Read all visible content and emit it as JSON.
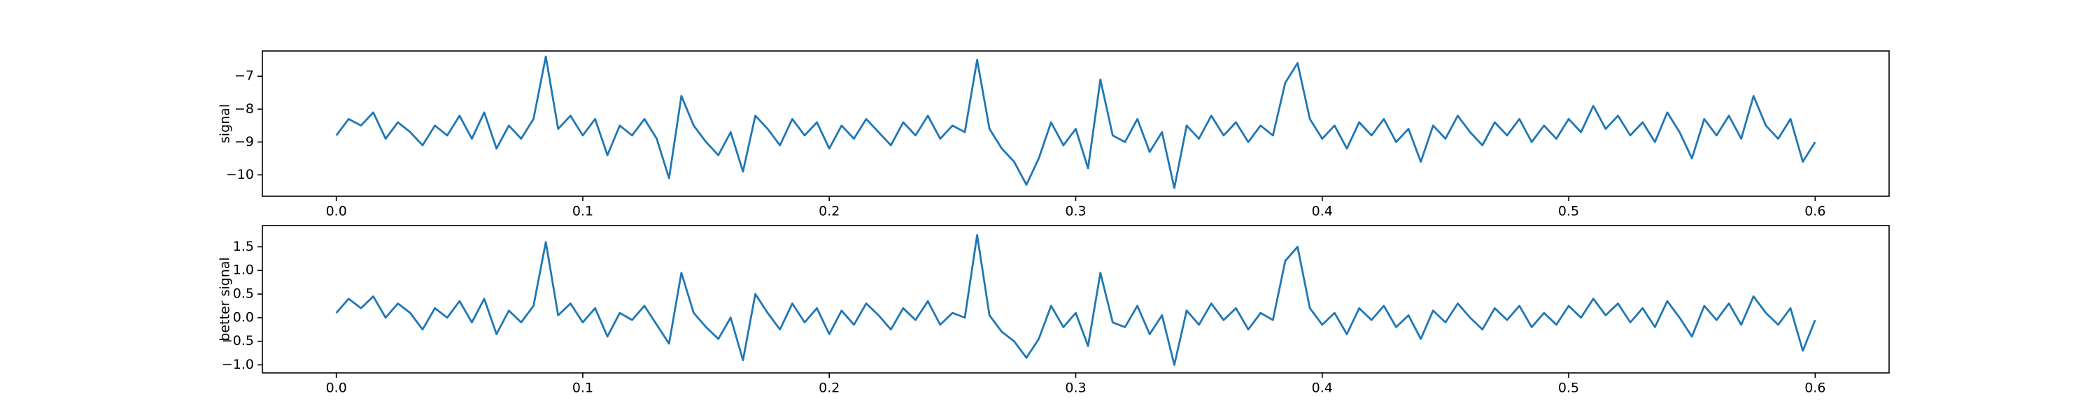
{
  "chart_data": [
    {
      "type": "line",
      "ylabel": "signal",
      "color": "#1f77b4",
      "xlim": [
        -0.03,
        0.63
      ],
      "ylim": [
        -10.65,
        -6.23
      ],
      "xticks": [
        {
          "value": 0,
          "label": "0.0"
        },
        0.1,
        0.2,
        0.3,
        0.4,
        0.5,
        0.6
      ],
      "yticks": [
        {
          "value": -10,
          "label": "−10"
        },
        {
          "value": -9,
          "label": "−9"
        },
        {
          "value": -8,
          "label": "−8"
        },
        {
          "value": -7,
          "label": "−7"
        }
      ],
      "x": [
        0,
        0.005,
        0.01,
        0.015,
        0.02,
        0.025,
        0.03,
        0.035,
        0.04,
        0.045,
        0.05,
        0.055,
        0.06,
        0.065,
        0.07,
        0.075,
        0.08,
        0.085,
        0.09,
        0.095,
        0.1,
        0.105,
        0.11,
        0.115,
        0.12,
        0.125,
        0.13,
        0.135,
        0.14,
        0.145,
        0.15,
        0.155,
        0.16,
        0.165,
        0.17,
        0.175,
        0.18,
        0.185,
        0.19,
        0.195,
        0.2,
        0.205,
        0.21,
        0.215,
        0.22,
        0.225,
        0.23,
        0.235,
        0.24,
        0.245,
        0.25,
        0.255,
        0.26,
        0.265,
        0.27,
        0.275,
        0.28,
        0.285,
        0.29,
        0.295,
        0.3,
        0.305,
        0.31,
        0.315,
        0.32,
        0.325,
        0.33,
        0.335,
        0.34,
        0.345,
        0.35,
        0.355,
        0.36,
        0.365,
        0.37,
        0.375,
        0.38,
        0.385,
        0.39,
        0.395,
        0.4,
        0.405,
        0.41,
        0.415,
        0.42,
        0.425,
        0.43,
        0.435,
        0.44,
        0.445,
        0.45,
        0.455,
        0.46,
        0.465,
        0.47,
        0.475,
        0.48,
        0.485,
        0.49,
        0.495,
        0.5,
        0.505,
        0.51,
        0.515,
        0.52,
        0.525,
        0.53,
        0.535,
        0.54,
        0.545,
        0.55,
        0.555,
        0.56,
        0.565,
        0.57,
        0.575,
        0.58,
        0.585,
        0.59,
        0.595,
        0.6
      ],
      "values": [
        -8.8,
        -8.3,
        -8.5,
        -8.1,
        -8.9,
        -8.4,
        -8.7,
        -9.1,
        -8.5,
        -8.8,
        -8.2,
        -8.9,
        -8.1,
        -9.2,
        -8.5,
        -8.9,
        -8.3,
        -6.4,
        -8.6,
        -8.2,
        -8.8,
        -8.3,
        -9.4,
        -8.5,
        -8.8,
        -8.3,
        -8.9,
        -10.1,
        -7.6,
        -8.5,
        -9.0,
        -9.4,
        -8.7,
        -9.9,
        -8.2,
        -8.6,
        -9.1,
        -8.3,
        -8.8,
        -8.4,
        -9.2,
        -8.5,
        -8.9,
        -8.3,
        -8.7,
        -9.1,
        -8.4,
        -8.8,
        -8.2,
        -8.9,
        -8.5,
        -8.7,
        -6.5,
        -8.6,
        -9.2,
        -9.6,
        -10.3,
        -9.5,
        -8.4,
        -9.1,
        -8.6,
        -9.8,
        -7.1,
        -8.8,
        -9.0,
        -8.3,
        -9.3,
        -8.7,
        -10.4,
        -8.5,
        -8.9,
        -8.2,
        -8.8,
        -8.4,
        -9.0,
        -8.5,
        -8.8,
        -7.2,
        -6.6,
        -8.3,
        -8.9,
        -8.5,
        -9.2,
        -8.4,
        -8.8,
        -8.3,
        -9.0,
        -8.6,
        -9.6,
        -8.5,
        -8.9,
        -8.2,
        -8.7,
        -9.1,
        -8.4,
        -8.8,
        -8.3,
        -9.0,
        -8.5,
        -8.9,
        -8.3,
        -8.7,
        -7.9,
        -8.6,
        -8.2,
        -8.8,
        -8.4,
        -9.0,
        -8.1,
        -8.7,
        -9.5,
        -8.3,
        -8.8,
        -8.2,
        -8.9,
        -7.6,
        -8.5,
        -8.9,
        -8.3,
        -9.6,
        -9.0
      ]
    },
    {
      "type": "line",
      "ylabel": "better signal",
      "color": "#1f77b4",
      "xlim": [
        -0.03,
        0.63
      ],
      "ylim": [
        -1.17,
        1.95
      ],
      "xticks": [
        {
          "value": 0,
          "label": "0.0"
        },
        0.1,
        0.2,
        0.3,
        0.4,
        0.5,
        0.6
      ],
      "yticks": [
        {
          "value": -1,
          "label": "−1.0"
        },
        {
          "value": -0.5,
          "label": "−0.5"
        },
        {
          "value": 0,
          "label": "0.0"
        },
        0.5,
        {
          "value": 1,
          "label": "1.0"
        },
        1.5
      ],
      "x": [
        0,
        0.005,
        0.01,
        0.015,
        0.02,
        0.025,
        0.03,
        0.035,
        0.04,
        0.045,
        0.05,
        0.055,
        0.06,
        0.065,
        0.07,
        0.075,
        0.08,
        0.085,
        0.09,
        0.095,
        0.1,
        0.105,
        0.11,
        0.115,
        0.12,
        0.125,
        0.13,
        0.135,
        0.14,
        0.145,
        0.15,
        0.155,
        0.16,
        0.165,
        0.17,
        0.175,
        0.18,
        0.185,
        0.19,
        0.195,
        0.2,
        0.205,
        0.21,
        0.215,
        0.22,
        0.225,
        0.23,
        0.235,
        0.24,
        0.245,
        0.25,
        0.255,
        0.26,
        0.265,
        0.27,
        0.275,
        0.28,
        0.285,
        0.29,
        0.295,
        0.3,
        0.305,
        0.31,
        0.315,
        0.32,
        0.325,
        0.33,
        0.335,
        0.34,
        0.345,
        0.35,
        0.355,
        0.36,
        0.365,
        0.37,
        0.375,
        0.38,
        0.385,
        0.39,
        0.395,
        0.4,
        0.405,
        0.41,
        0.415,
        0.42,
        0.425,
        0.43,
        0.435,
        0.44,
        0.445,
        0.45,
        0.455,
        0.46,
        0.465,
        0.47,
        0.475,
        0.48,
        0.485,
        0.49,
        0.495,
        0.5,
        0.505,
        0.51,
        0.515,
        0.52,
        0.525,
        0.53,
        0.535,
        0.54,
        0.545,
        0.55,
        0.555,
        0.56,
        0.565,
        0.57,
        0.575,
        0.58,
        0.585,
        0.59,
        0.595,
        0.6
      ],
      "values": [
        0.1,
        0.4,
        0.2,
        0.45,
        0.0,
        0.3,
        0.1,
        -0.25,
        0.2,
        0.0,
        0.35,
        -0.1,
        0.4,
        -0.35,
        0.15,
        -0.1,
        0.25,
        1.6,
        0.05,
        0.3,
        -0.1,
        0.2,
        -0.4,
        0.1,
        -0.05,
        0.25,
        -0.15,
        -0.55,
        0.95,
        0.1,
        -0.2,
        -0.45,
        0.0,
        -0.9,
        0.5,
        0.1,
        -0.25,
        0.3,
        -0.1,
        0.2,
        -0.35,
        0.15,
        -0.15,
        0.3,
        0.05,
        -0.25,
        0.2,
        -0.05,
        0.35,
        -0.15,
        0.1,
        0.0,
        1.75,
        0.05,
        -0.3,
        -0.5,
        -0.85,
        -0.45,
        0.25,
        -0.2,
        0.1,
        -0.6,
        0.95,
        -0.1,
        -0.2,
        0.25,
        -0.35,
        0.05,
        -1.0,
        0.15,
        -0.15,
        0.3,
        -0.05,
        0.2,
        -0.25,
        0.1,
        -0.05,
        1.2,
        1.5,
        0.2,
        -0.15,
        0.1,
        -0.35,
        0.2,
        -0.05,
        0.25,
        -0.2,
        0.05,
        -0.45,
        0.15,
        -0.1,
        0.3,
        0.0,
        -0.25,
        0.2,
        -0.05,
        0.25,
        -0.2,
        0.1,
        -0.15,
        0.25,
        0.0,
        0.4,
        0.05,
        0.3,
        -0.1,
        0.2,
        -0.2,
        0.35,
        0.0,
        -0.4,
        0.25,
        -0.05,
        0.3,
        -0.15,
        0.45,
        0.1,
        -0.15,
        0.2,
        -0.7,
        -0.05
      ]
    }
  ]
}
